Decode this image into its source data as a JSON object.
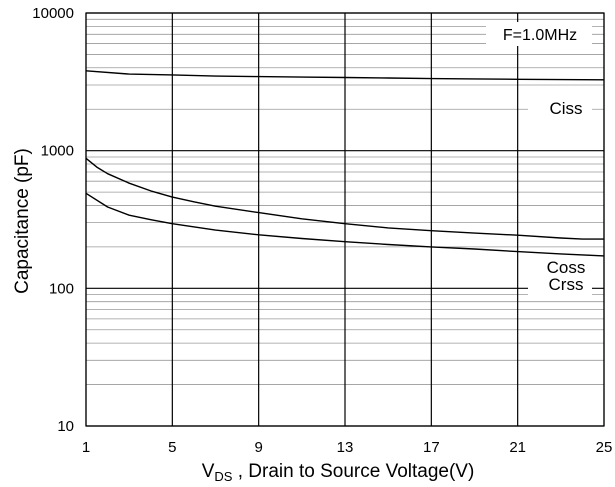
{
  "chart_data": {
    "type": "line",
    "xlabel_prefix": "V",
    "xlabel_sub": "DS",
    "xlabel_rest": " , Drain to Source Voltage(V)",
    "ylabel": "Capacitance (pF)",
    "xlim": [
      1,
      25
    ],
    "ylim": [
      10,
      10000
    ],
    "y_scale": "log",
    "x_ticks": [
      1,
      5,
      9,
      13,
      17,
      21,
      25
    ],
    "y_ticks": [
      {
        "value": 10,
        "label": "10"
      },
      {
        "value": 100,
        "label": "100"
      },
      {
        "value": 1000,
        "label": "1000"
      },
      {
        "value": 10000,
        "label": "10000"
      }
    ],
    "grid": true,
    "annotation": "F=1.0MHz",
    "series": [
      {
        "name": "Ciss",
        "x": [
          1,
          3,
          5,
          7,
          9,
          11,
          13,
          15,
          17,
          19,
          21,
          23,
          25
        ],
        "y": [
          3800,
          3600,
          3550,
          3480,
          3450,
          3420,
          3400,
          3370,
          3340,
          3320,
          3300,
          3280,
          3270
        ]
      },
      {
        "name": "Coss",
        "x": [
          1,
          1.5,
          2,
          3,
          4,
          5,
          6,
          7,
          9,
          11,
          13,
          15,
          17,
          19,
          21,
          23,
          24,
          25
        ],
        "y": [
          880,
          760,
          680,
          580,
          510,
          460,
          425,
          395,
          355,
          320,
          295,
          275,
          262,
          252,
          243,
          232,
          228,
          228
        ]
      },
      {
        "name": "Crss",
        "x": [
          1,
          2,
          3,
          4,
          5,
          7,
          9,
          11,
          13,
          15,
          17,
          19,
          21,
          23,
          25
        ],
        "y": [
          490,
          390,
          340,
          315,
          295,
          265,
          245,
          230,
          218,
          208,
          200,
          193,
          185,
          178,
          172
        ]
      }
    ]
  }
}
